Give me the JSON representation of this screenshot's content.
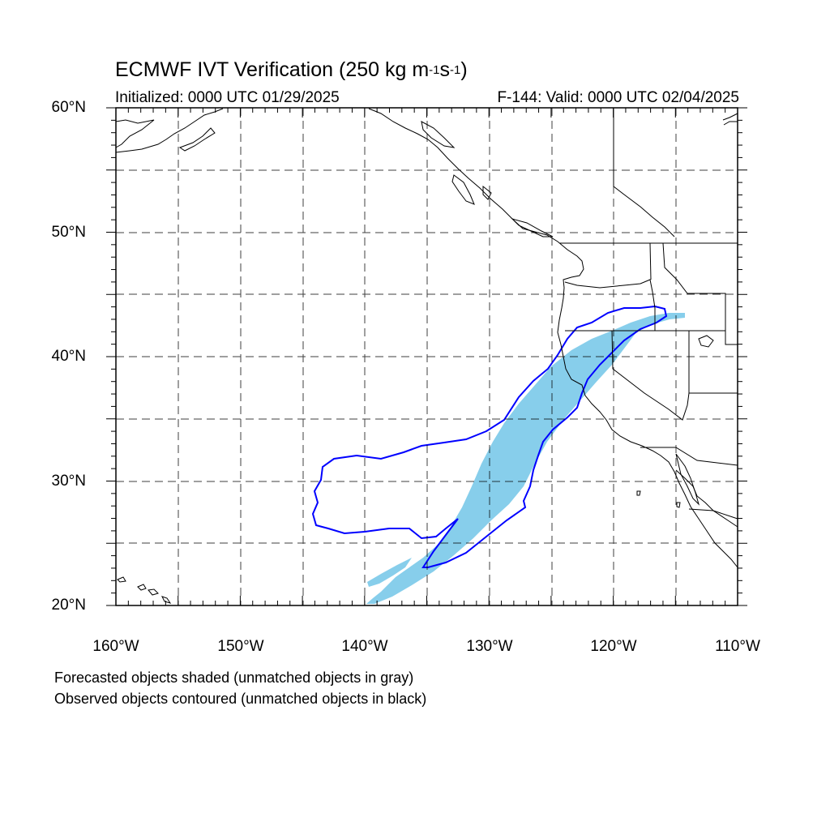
{
  "title": {
    "main": "ECMWF IVT Verification (250 kg m",
    "sup1": "-1",
    "mid": "s",
    "sup2": "-1",
    "end": ")"
  },
  "initialized": "Initialized: 0000 UTC 01/29/2025",
  "valid": "F-144: Valid: 0000 UTC 02/04/2025",
  "lat_labels": [
    "60°N",
    "50°N",
    "40°N",
    "30°N",
    "20°N"
  ],
  "lon_labels": [
    "160°W",
    "150°W",
    "140°W",
    "130°W",
    "120°W",
    "110°W"
  ],
  "notes": [
    "Forecasted objects shaded (unmatched objects in gray)",
    "Observed objects contoured (unmatched objects in black)"
  ],
  "colors": {
    "forecast_fill": "#87ceeb",
    "observed_contour": "#0000ff",
    "coastline": "#000000",
    "grid": "#000000"
  }
}
